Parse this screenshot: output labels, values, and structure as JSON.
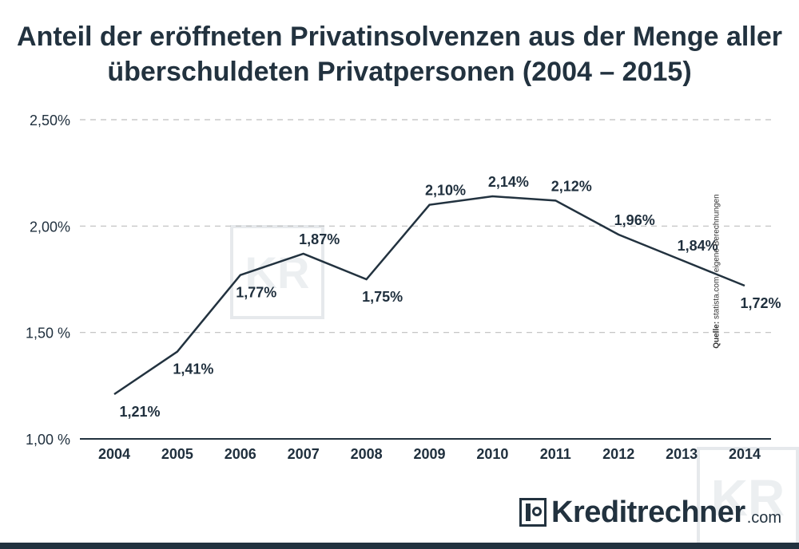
{
  "title_line1": "Anteil der eröffneten Privatinsolvenzen aus der Menge aller",
  "title_line2": "überschuldeten Privatpersonen (2004 – 2015)",
  "source_label": "Quelle:",
  "source_text": " statista.com, eigene Berechnungen",
  "logo": {
    "name": "Kreditrechner",
    "suffix": ".com",
    "watermark": "KR"
  },
  "colors": {
    "line": "#22323f",
    "grid": "#bfbfbf",
    "axis": "#22323f",
    "text": "#1f2f3d"
  },
  "chart_data": {
    "type": "line",
    "title": "Anteil der eröffneten Privatinsolvenzen aus der Menge aller überschuldeten Privatpersonen (2004 – 2015)",
    "xlabel": "",
    "ylabel": "",
    "ylim": [
      1.0,
      2.5
    ],
    "y_ticks": [
      {
        "value": 2.5,
        "label": "2,50%"
      },
      {
        "value": 2.0,
        "label": "2,00%"
      },
      {
        "value": 1.5,
        "label": "1,50 %"
      },
      {
        "value": 1.0,
        "label": "1,00 %"
      }
    ],
    "grid": "dashed-horizontal",
    "categories": [
      "2004",
      "2005",
      "2006",
      "2007",
      "2008",
      "2009",
      "2010",
      "2011",
      "2012",
      "2013",
      "2014"
    ],
    "values": [
      1.21,
      1.41,
      1.77,
      1.87,
      1.75,
      2.1,
      2.14,
      2.12,
      1.96,
      1.84,
      1.72
    ],
    "data_labels": [
      "1,21%",
      "1,41%",
      "1,77%",
      "1,87%",
      "1,75%",
      "2,10%",
      "2,14%",
      "2,12%",
      "1,96%",
      "1,84%",
      "1,72%"
    ],
    "label_positions": [
      "below",
      "below",
      "below",
      "above",
      "below",
      "above",
      "above",
      "above",
      "above",
      "above",
      "below"
    ]
  }
}
